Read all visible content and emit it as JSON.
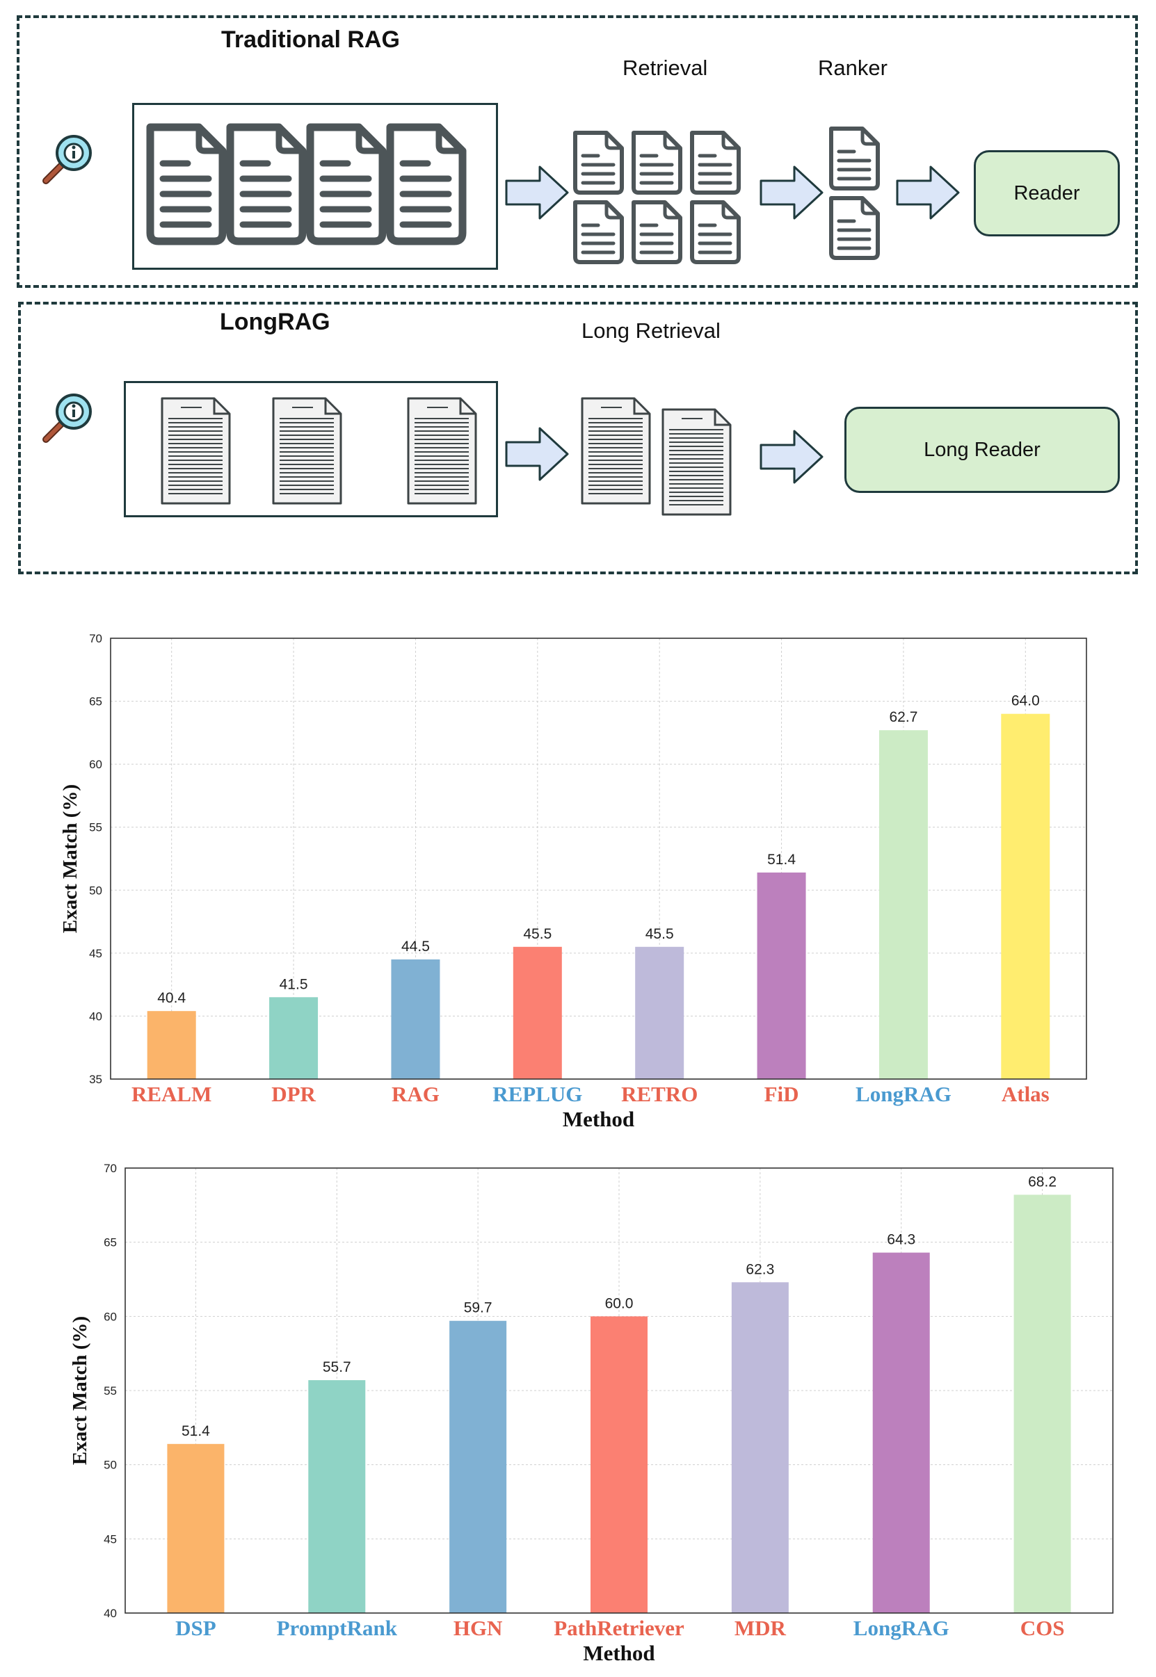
{
  "diagram": {
    "traditional": {
      "title": "Traditional RAG",
      "retrieval_label": "Retrieval",
      "ranker_label": "Ranker",
      "reader_label": "Reader"
    },
    "longrag": {
      "title": "LongRAG",
      "retrieval_label": "Long Retrieval",
      "reader_label": "Long Reader"
    }
  },
  "chart_data": [
    {
      "type": "bar",
      "categories": [
        "REALM",
        "DPR",
        "RAG",
        "REPLUG",
        "RETRO",
        "FiD",
        "LongRAG",
        "Atlas"
      ],
      "values": [
        40.4,
        41.5,
        44.5,
        45.5,
        45.5,
        51.4,
        62.7,
        64.0
      ],
      "value_labels": [
        "40.4",
        "41.5",
        "44.5",
        "45.5",
        "45.5",
        "51.4",
        "62.7",
        "64.0"
      ],
      "bar_colors": [
        "#fbb46a",
        "#8fd3c5",
        "#80b1d3",
        "#fb8072",
        "#bebada",
        "#bc80bd",
        "#ccebc5",
        "#ffed6f"
      ],
      "label_colors": [
        "#e8634f",
        "#e8634f",
        "#e8634f",
        "#4a9ad0",
        "#e8634f",
        "#e8634f",
        "#4a9ad0",
        "#e8634f"
      ],
      "yticks": [
        "35",
        "40",
        "45",
        "50",
        "55",
        "60",
        "65",
        "70"
      ],
      "ylim": [
        35,
        70
      ],
      "xlabel": "Method",
      "ylabel": "Exact Match (%)",
      "grid": true
    },
    {
      "type": "bar",
      "categories": [
        "DSP",
        "PromptRank",
        "HGN",
        "PathRetriever",
        "MDR",
        "LongRAG",
        "COS"
      ],
      "values": [
        51.4,
        55.7,
        59.7,
        60.0,
        62.3,
        64.3,
        68.2
      ],
      "value_labels": [
        "51.4",
        "55.7",
        "59.7",
        "60.0",
        "62.3",
        "64.3",
        "68.2"
      ],
      "bar_colors": [
        "#fbb46a",
        "#8fd3c5",
        "#80b1d3",
        "#fb8072",
        "#bebada",
        "#bc80bd",
        "#ccebc5"
      ],
      "label_colors": [
        "#4a9ad0",
        "#4a9ad0",
        "#e8634f",
        "#e8634f",
        "#e8634f",
        "#4a9ad0",
        "#e8634f"
      ],
      "yticks": [
        "40",
        "45",
        "50",
        "55",
        "60",
        "65",
        "70"
      ],
      "ylim": [
        40,
        70
      ],
      "xlabel": "Method",
      "ylabel": "Exact Match (%)",
      "grid": true
    }
  ]
}
